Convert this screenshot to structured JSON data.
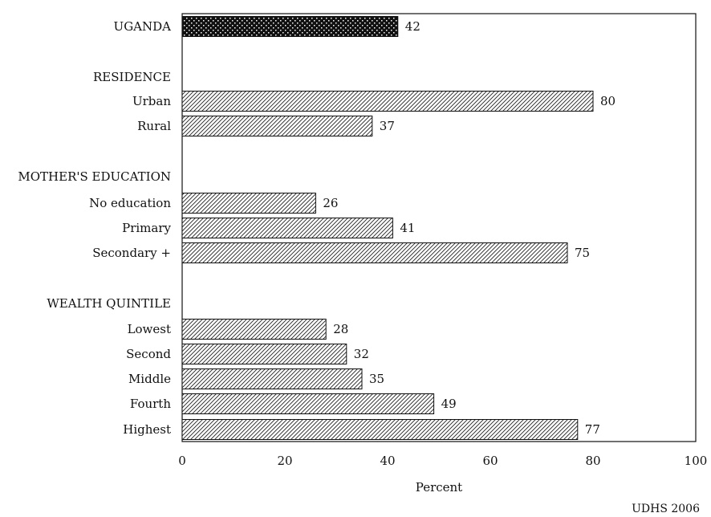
{
  "chart_data": {
    "type": "bar",
    "orientation": "horizontal",
    "xlabel": "Percent",
    "xlim": [
      0,
      100
    ],
    "xticks": [
      0,
      20,
      40,
      60,
      80,
      100
    ],
    "source": "UDHS 2006",
    "rows": [
      {
        "label": "UGANDA",
        "value": 42,
        "kind": "total"
      },
      {
        "label": "RESIDENCE",
        "kind": "header"
      },
      {
        "label": "Urban",
        "value": 80,
        "kind": "bar"
      },
      {
        "label": "Rural",
        "value": 37,
        "kind": "bar"
      },
      {
        "label": "MOTHER'S EDUCATION",
        "kind": "header"
      },
      {
        "label": "No education",
        "value": 26,
        "kind": "bar"
      },
      {
        "label": "Primary",
        "value": 41,
        "kind": "bar"
      },
      {
        "label": "Secondary +",
        "value": 75,
        "kind": "bar"
      },
      {
        "label": "WEALTH QUINTILE",
        "kind": "header"
      },
      {
        "label": "Lowest",
        "value": 28,
        "kind": "bar"
      },
      {
        "label": "Second",
        "value": 32,
        "kind": "bar"
      },
      {
        "label": "Middle",
        "value": 35,
        "kind": "bar"
      },
      {
        "label": "Fourth",
        "value": 49,
        "kind": "bar"
      },
      {
        "label": "Highest",
        "value": 77,
        "kind": "bar"
      }
    ]
  }
}
